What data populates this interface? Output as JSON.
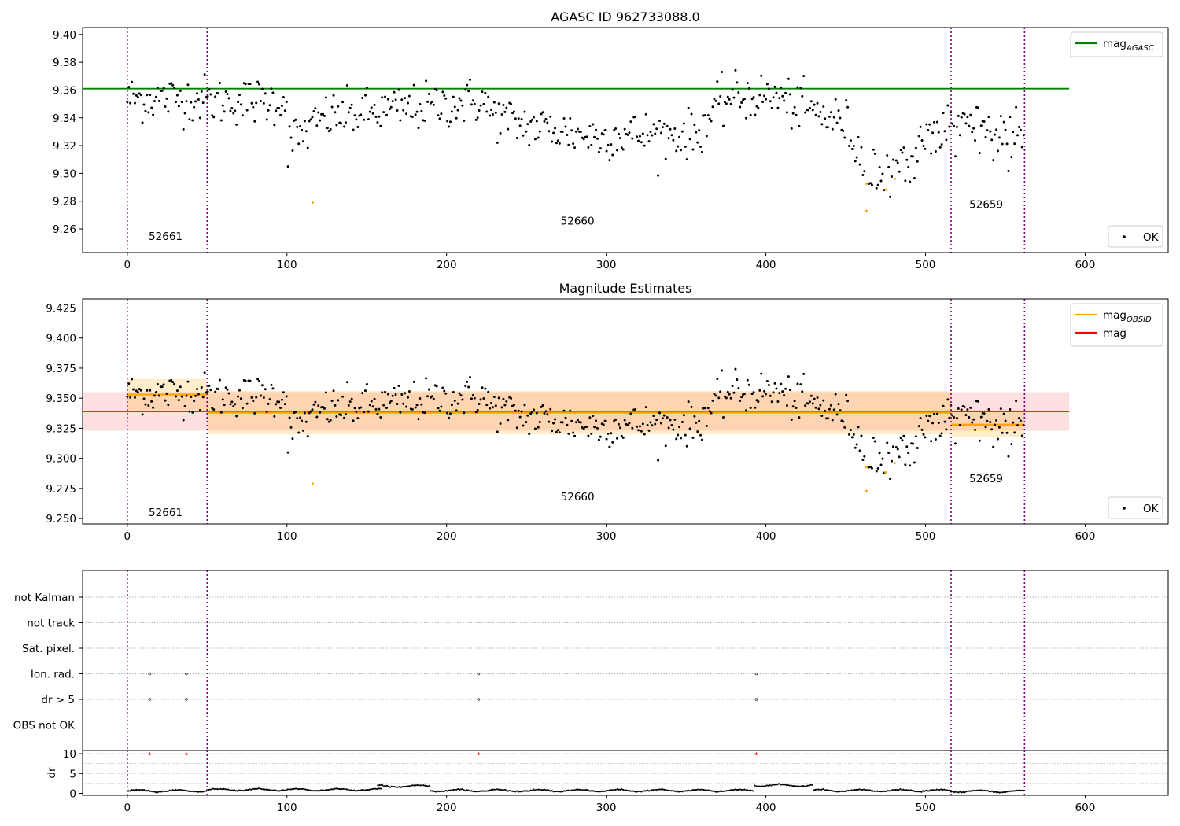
{
  "chart_data": [
    {
      "type": "scatter",
      "title": "AGASC ID 962733088.0",
      "xlim": [
        -28,
        652
      ],
      "ylim": [
        9.243,
        9.405
      ],
      "xticks": [
        0,
        100,
        200,
        300,
        400,
        500,
        600
      ],
      "yticks": [
        9.26,
        9.28,
        9.3,
        9.32,
        9.34,
        9.36,
        9.38,
        9.4
      ],
      "ytick_labels": [
        "9.26",
        "9.28",
        "9.30",
        "9.32",
        "9.34",
        "9.36",
        "9.38",
        "9.40"
      ],
      "hline": {
        "name": "mag_AGASC",
        "y": 9.361,
        "x": [
          -28,
          590
        ],
        "color": "#008000"
      },
      "legend_upper": [
        {
          "label": "mag",
          "sub": "AGASC",
          "color": "#008000",
          "kind": "line"
        }
      ],
      "legend_lower": [
        {
          "label": "OK",
          "color": "#000000",
          "kind": "dot"
        }
      ],
      "legend_upper_loc": "top-right",
      "legend_lower_loc": "lower-right",
      "obs_labels": [
        {
          "text": "52661",
          "x": 24,
          "y": 9.252
        },
        {
          "text": "52660",
          "x": 282,
          "y": 9.263
        },
        {
          "text": "52659",
          "x": 538,
          "y": 9.275
        }
      ],
      "grid": false
    },
    {
      "type": "scatter",
      "title": "Magnitude Estimates",
      "xlim": [
        -28,
        652
      ],
      "ylim": [
        9.2455,
        9.4325
      ],
      "xticks": [
        0,
        100,
        200,
        300,
        400,
        500,
        600
      ],
      "yticks": [
        9.25,
        9.275,
        9.3,
        9.325,
        9.35,
        9.375,
        9.4,
        9.425
      ],
      "ytick_labels": [
        "9.250",
        "9.275",
        "9.300",
        "9.325",
        "9.350",
        "9.375",
        "9.400",
        "9.425"
      ],
      "mag": {
        "y": 9.339,
        "band": [
          9.323,
          9.355
        ],
        "x": [
          -28,
          590
        ],
        "color": "#ff0000"
      },
      "mag_obsid": [
        {
          "x": [
            0,
            50
          ],
          "y": 9.353,
          "band": [
            9.34,
            9.366
          ]
        },
        {
          "x": [
            50,
            516
          ],
          "y": 9.338,
          "band": [
            9.32,
            9.356
          ]
        },
        {
          "x": [
            516,
            562
          ],
          "y": 9.328,
          "band": [
            9.318,
            9.34
          ]
        }
      ],
      "legend_upper": [
        {
          "label": "mag",
          "sub": "OBSID",
          "color": "#ffa500",
          "kind": "line"
        },
        {
          "label": "mag",
          "sub": "",
          "color": "#ff0000",
          "kind": "line"
        }
      ],
      "legend_lower": [
        {
          "label": "OK",
          "color": "#000000",
          "kind": "dot"
        }
      ],
      "legend_upper_loc": "top-right",
      "legend_lower_loc": "lower-right",
      "obs_labels": [
        {
          "text": "52661",
          "x": 24,
          "y": 9.252
        },
        {
          "text": "52660",
          "x": 282,
          "y": 9.265
        },
        {
          "text": "52659",
          "x": 538,
          "y": 9.28
        }
      ],
      "grid": false
    },
    {
      "type": "scatter",
      "title": "",
      "xlim": [
        -28,
        652
      ],
      "categories": [
        "not Kalman",
        "not track",
        "Sat. pixel.",
        "Ion. rad.",
        "dr > 5",
        "OBS not OK"
      ],
      "flags": [
        {
          "category": "Ion. rad.",
          "x": [
            14,
            37,
            220,
            394
          ]
        },
        {
          "category": "dr > 5",
          "x": [
            14,
            37,
            220,
            394
          ]
        }
      ],
      "grid": true
    },
    {
      "type": "scatter",
      "title": "",
      "xlim": [
        -28,
        652
      ],
      "ylim": [
        -0.5,
        10.8
      ],
      "xticks": [
        0,
        100,
        200,
        300,
        400,
        500,
        600
      ],
      "yticks": [
        0,
        5,
        10
      ],
      "ylabel": "dr",
      "segments": [
        {
          "x": [
            0,
            50
          ],
          "dr": 0.6
        },
        {
          "x": [
            50,
            160
          ],
          "dr": 0.9
        },
        {
          "x": [
            157,
            190
          ],
          "dr": 1.8
        },
        {
          "x": [
            190,
            393
          ],
          "dr": 0.7
        },
        {
          "x": [
            393,
            430
          ],
          "dr": 2.0
        },
        {
          "x": [
            430,
            516
          ],
          "dr": 0.7
        },
        {
          "x": [
            516,
            562
          ],
          "dr": 0.5
        }
      ],
      "outliers": [
        {
          "x": 14,
          "dr": 10
        },
        {
          "x": 37,
          "dr": 10
        },
        {
          "x": 220,
          "dr": 10
        },
        {
          "x": 394,
          "dr": 10
        }
      ],
      "grid": true
    }
  ],
  "obs_boundaries": [
    0,
    50,
    516,
    562
  ],
  "colors": {
    "ok": "#000000",
    "suspect": "#ffa500",
    "agasc": "#008000",
    "mag": "#ff0000",
    "obsid": "#ffa500",
    "boundary": "#800080",
    "outlier": "#ff0000"
  }
}
